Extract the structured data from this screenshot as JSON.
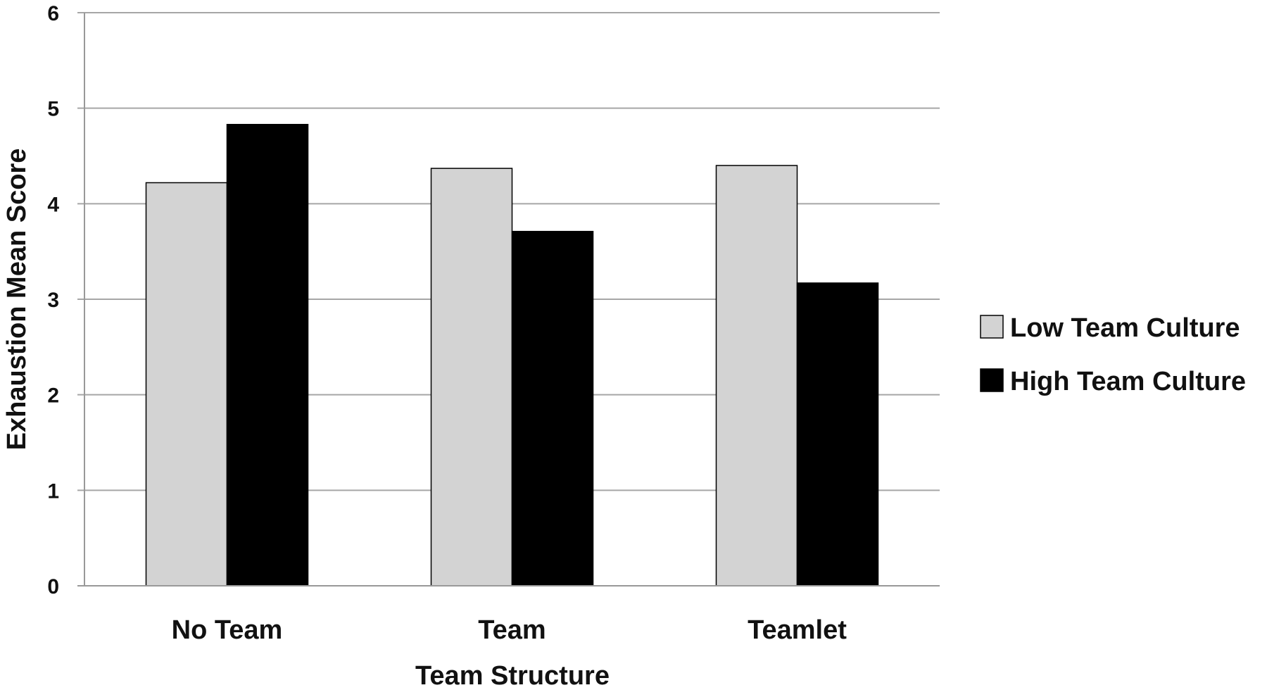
{
  "chart_data": {
    "type": "bar",
    "title": "",
    "xlabel": "Team Structure",
    "ylabel": "Exhaustion Mean Score",
    "categories": [
      "No Team",
      "Team",
      "Teamlet"
    ],
    "series": [
      {
        "name": "Low Team Culture",
        "color": "#d3d3d3",
        "values": [
          4.22,
          4.37,
          4.4
        ]
      },
      {
        "name": "High Team Culture",
        "color": "#000000",
        "values": [
          4.83,
          3.71,
          3.17
        ]
      }
    ],
    "ylim": [
      0,
      6
    ],
    "yticks": [
      "0",
      "1",
      "2",
      "3",
      "4",
      "5",
      "6"
    ],
    "grid": true,
    "legend": "right"
  }
}
